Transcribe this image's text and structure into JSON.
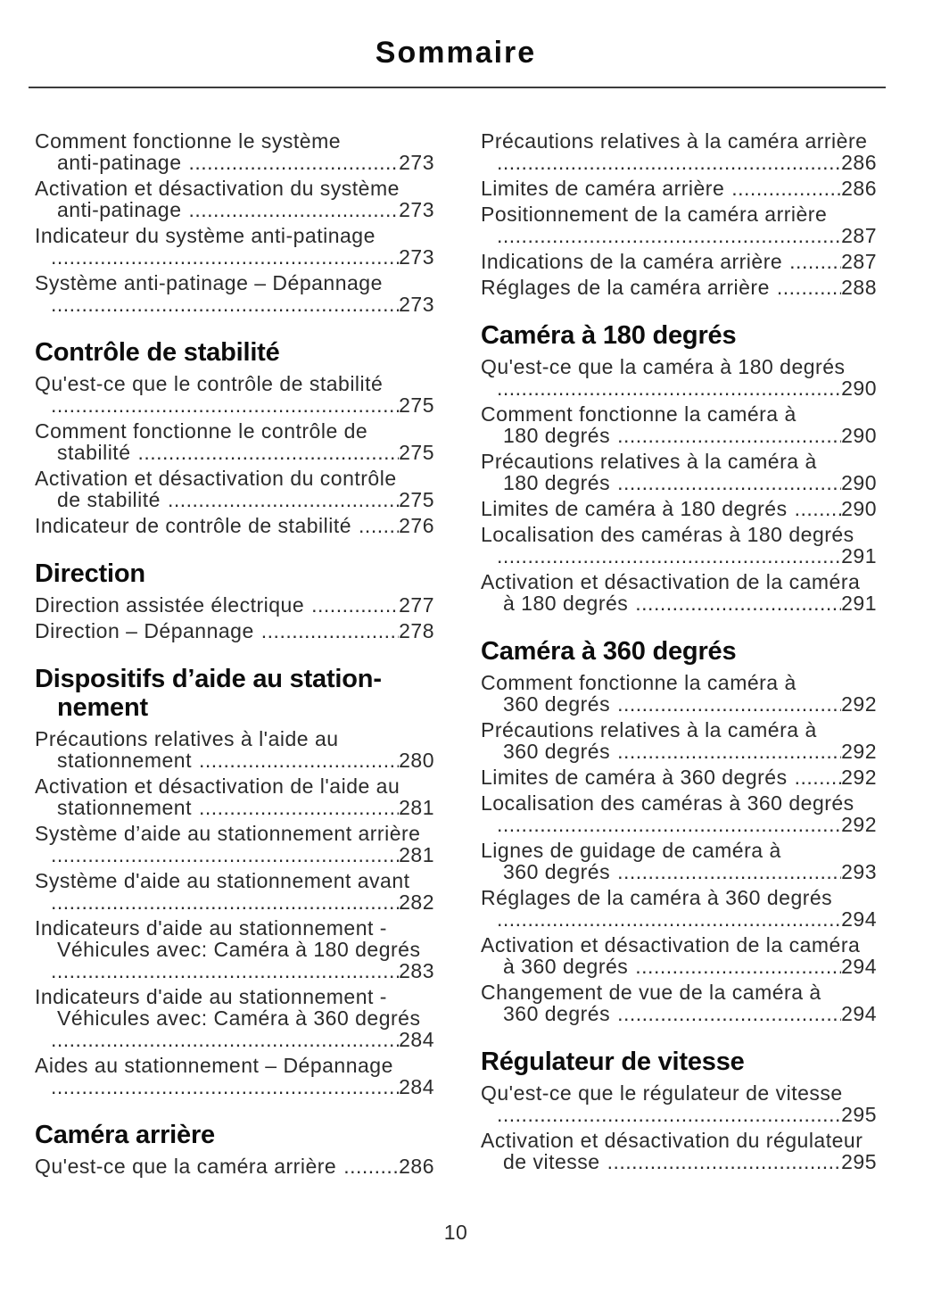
{
  "title": "Sommaire",
  "footer": {
    "page_number": "10"
  },
  "colors": {
    "body_text": "#2b2b2b",
    "heading_text": "#0d0d0d",
    "rule": "#3c3c3c"
  },
  "columns": [
    {
      "blocks": [
        {
          "type": "entry",
          "lines": [
            "Comment fonctionne le système",
            "anti-patinage"
          ],
          "page": "273"
        },
        {
          "type": "entry",
          "lines": [
            "Activation et désactivation du système",
            "anti-patinage"
          ],
          "page": "273"
        },
        {
          "type": "entry",
          "lines": [
            "Indicateur du système anti-patinage",
            ""
          ],
          "page": "273"
        },
        {
          "type": "entry",
          "lines": [
            "Système anti-patinage – Dépannage",
            ""
          ],
          "page": "273"
        },
        {
          "type": "heading",
          "lines": [
            "Contrôle de stabilité"
          ]
        },
        {
          "type": "entry",
          "lines": [
            "Qu'est-ce que le contrôle de stabilité",
            ""
          ],
          "page": "275"
        },
        {
          "type": "entry",
          "lines": [
            "Comment fonctionne le contrôle de",
            "stabilité"
          ],
          "page": "275"
        },
        {
          "type": "entry",
          "lines": [
            "Activation et désactivation du contrôle",
            "de stabilité"
          ],
          "page": "275"
        },
        {
          "type": "entry",
          "lines": [
            "Indicateur de contrôle de stabilité"
          ],
          "page": "276"
        },
        {
          "type": "heading",
          "lines": [
            "Direction"
          ]
        },
        {
          "type": "entry",
          "lines": [
            "Direction assistée électrique"
          ],
          "page": "277"
        },
        {
          "type": "entry",
          "lines": [
            "Direction – Dépannage"
          ],
          "page": "278"
        },
        {
          "type": "heading",
          "lines": [
            "Dispositifs d’aide au station-",
            "nement"
          ]
        },
        {
          "type": "entry",
          "lines": [
            "Précautions relatives à l'aide au",
            "stationnement"
          ],
          "page": "280"
        },
        {
          "type": "entry",
          "lines": [
            "Activation et désactivation de l'aide au",
            "stationnement"
          ],
          "page": "281"
        },
        {
          "type": "entry",
          "lines": [
            "Système d’aide au stationnement arrière",
            ""
          ],
          "page": "281"
        },
        {
          "type": "entry",
          "lines": [
            "Système d'aide au stationnement avant",
            ""
          ],
          "page": "282"
        },
        {
          "type": "entry",
          "lines": [
            "Indicateurs d'aide au stationnement -",
            "Véhicules avec: Caméra à 180 degrés",
            ""
          ],
          "page": "283"
        },
        {
          "type": "entry",
          "lines": [
            "Indicateurs d'aide au stationnement -",
            "Véhicules avec: Caméra à 360 degrés",
            ""
          ],
          "page": "284"
        },
        {
          "type": "entry",
          "lines": [
            "Aides au stationnement – Dépannage",
            ""
          ],
          "page": "284"
        },
        {
          "type": "heading",
          "lines": [
            "Caméra arrière"
          ]
        },
        {
          "type": "entry",
          "lines": [
            "Qu'est-ce que la caméra arrière"
          ],
          "page": "286"
        }
      ]
    },
    {
      "blocks": [
        {
          "type": "entry",
          "lines": [
            "Précautions relatives à la caméra arrière",
            ""
          ],
          "page": "286"
        },
        {
          "type": "entry",
          "lines": [
            "Limites de caméra arrière"
          ],
          "page": "286"
        },
        {
          "type": "entry",
          "lines": [
            "Positionnement de la caméra arrière",
            ""
          ],
          "page": "287"
        },
        {
          "type": "entry",
          "lines": [
            "Indications de la caméra arrière"
          ],
          "page": "287"
        },
        {
          "type": "entry",
          "lines": [
            "Réglages de la caméra arrière"
          ],
          "page": "288"
        },
        {
          "type": "heading",
          "lines": [
            "Caméra à 180 degrés"
          ]
        },
        {
          "type": "entry",
          "lines": [
            "Qu'est-ce que la caméra à 180 degrés",
            ""
          ],
          "page": "290"
        },
        {
          "type": "entry",
          "lines": [
            "Comment fonctionne la caméra à",
            "180 degrés"
          ],
          "page": "290"
        },
        {
          "type": "entry",
          "lines": [
            "Précautions relatives à la caméra à",
            "180 degrés"
          ],
          "page": "290"
        },
        {
          "type": "entry",
          "lines": [
            "Limites de caméra à 180 degrés"
          ],
          "page": "290"
        },
        {
          "type": "entry",
          "lines": [
            "Localisation des caméras à 180 degrés",
            ""
          ],
          "page": "291"
        },
        {
          "type": "entry",
          "lines": [
            "Activation et désactivation de la caméra",
            "à 180 degrés"
          ],
          "page": "291"
        },
        {
          "type": "heading",
          "lines": [
            "Caméra à 360 degrés"
          ]
        },
        {
          "type": "entry",
          "lines": [
            "Comment fonctionne la caméra à",
            "360 degrés"
          ],
          "page": "292"
        },
        {
          "type": "entry",
          "lines": [
            "Précautions relatives à la caméra à",
            "360 degrés"
          ],
          "page": "292"
        },
        {
          "type": "entry",
          "lines": [
            "Limites de caméra à 360 degrés"
          ],
          "page": "292"
        },
        {
          "type": "entry",
          "lines": [
            "Localisation des caméras à 360 degrés",
            ""
          ],
          "page": "292"
        },
        {
          "type": "entry",
          "lines": [
            "Lignes de guidage de caméra à",
            "360 degrés"
          ],
          "page": "293"
        },
        {
          "type": "entry",
          "lines": [
            "Réglages de la caméra à 360 degrés",
            ""
          ],
          "page": "294"
        },
        {
          "type": "entry",
          "lines": [
            "Activation et désactivation de la caméra",
            "à 360 degrés"
          ],
          "page": "294"
        },
        {
          "type": "entry",
          "lines": [
            "Changement de vue de la caméra à",
            "360 degrés"
          ],
          "page": "294"
        },
        {
          "type": "heading",
          "lines": [
            "Régulateur de vitesse"
          ]
        },
        {
          "type": "entry",
          "lines": [
            "Qu'est-ce que le régulateur de vitesse",
            ""
          ],
          "page": "295"
        },
        {
          "type": "entry",
          "lines": [
            "Activation et désactivation du régulateur",
            "de vitesse"
          ],
          "page": "295"
        }
      ]
    }
  ]
}
